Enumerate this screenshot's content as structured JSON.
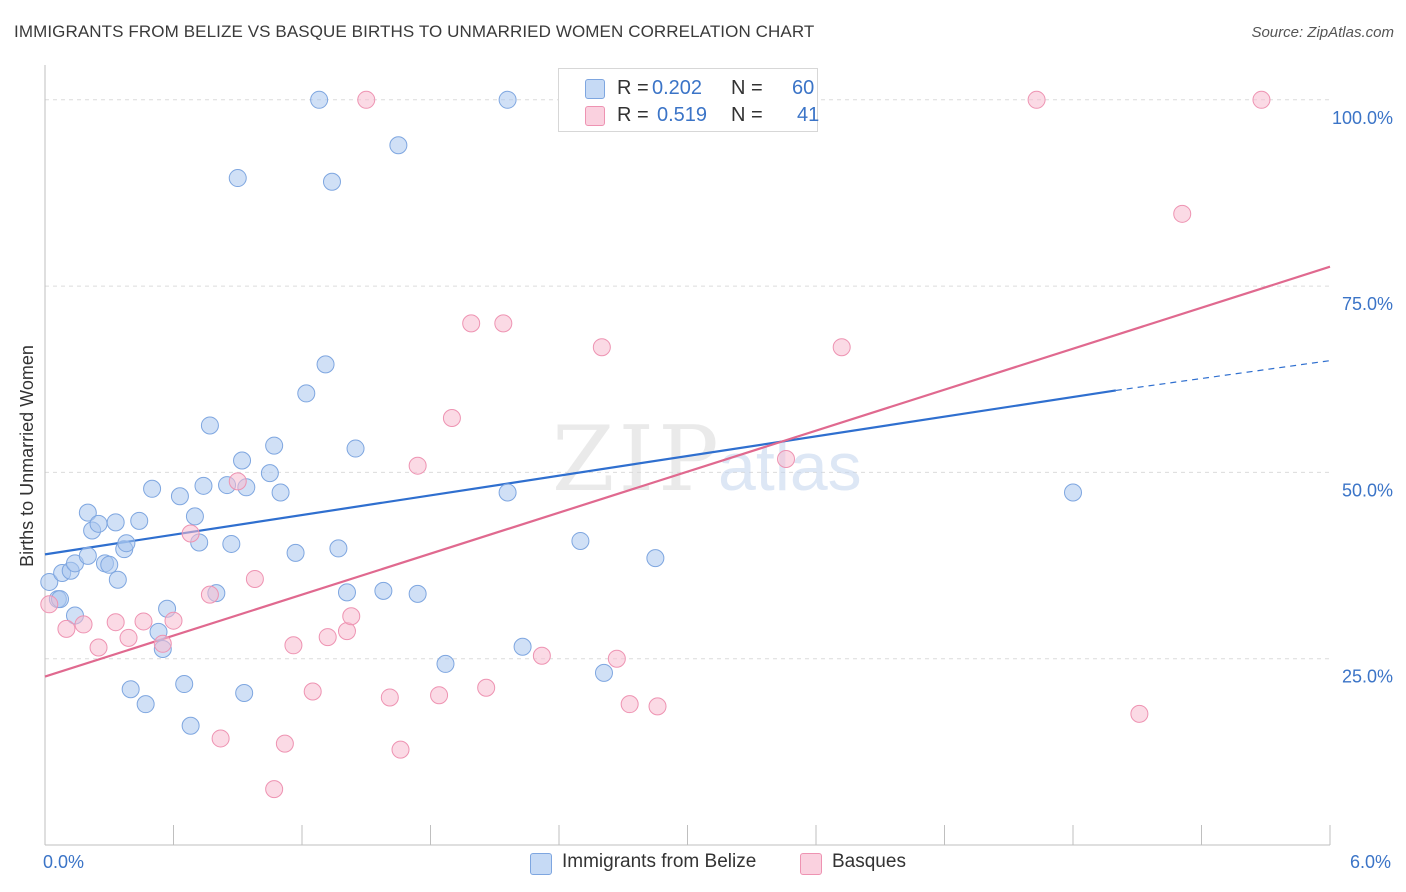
{
  "header": {
    "title": "IMMIGRANTS FROM BELIZE VS BASQUE BIRTHS TO UNMARRIED WOMEN CORRELATION CHART",
    "source": "Source: ZipAtlas.com"
  },
  "legend_top": {
    "rows": [
      {
        "r_key": "R =",
        "r_value": "0.202",
        "n_key": "N =",
        "n_value": "60"
      },
      {
        "r_key": "R =",
        "r_value": "0.519",
        "n_key": "N =",
        "n_value": "41"
      }
    ]
  },
  "legend_bottom": {
    "items": [
      "Immigrants from Belize",
      "Basques"
    ]
  },
  "watermark": {
    "zip": "ZIP",
    "atlas": "atlas"
  },
  "colors": {
    "blue_fill": "#a9c6ef",
    "blue_stroke": "#7ea6e0",
    "blue_line": "#2f6fcf",
    "pink_fill": "#f7bcd0",
    "pink_stroke": "#ee93b2",
    "pink_line": "#e0698f",
    "tick_label": "#3b74c7",
    "grid": "#dcdcdc"
  },
  "chart_data": {
    "type": "scatter",
    "title": "IMMIGRANTS FROM BELIZE VS BASQUE BIRTHS TO UNMARRIED WOMEN CORRELATION CHART",
    "xlabel": "",
    "ylabel": "Births to Unmarried Women",
    "xlim": [
      0,
      6
    ],
    "ylim": [
      0,
      104
    ],
    "x_tick_labels": [
      "0.0%",
      "6.0%"
    ],
    "y_ticks": [
      25,
      50,
      75,
      100
    ],
    "y_tick_labels": [
      "25.0%",
      "50.0%",
      "75.0%",
      "100.0%"
    ],
    "grid": true,
    "legend_position": "top-center",
    "series": [
      {
        "name": "Immigrants from Belize",
        "color": "#a9c6ef",
        "r": 0.202,
        "n": 60,
        "trend": {
          "x": [
            0.0,
            5.0
          ],
          "y": [
            39.0,
            61.0
          ],
          "dashed_extension": {
            "x": [
              5.0,
              6.0
            ],
            "y": [
              61.0,
              65.0
            ]
          }
        },
        "points": [
          [
            0.02,
            35.3
          ],
          [
            0.06,
            33.0
          ],
          [
            0.08,
            36.5
          ],
          [
            0.12,
            36.8
          ],
          [
            0.14,
            30.8
          ],
          [
            0.14,
            37.8
          ],
          [
            0.2,
            38.8
          ],
          [
            0.2,
            44.6
          ],
          [
            0.22,
            42.2
          ],
          [
            0.25,
            43.1
          ],
          [
            0.28,
            37.8
          ],
          [
            0.3,
            37.6
          ],
          [
            0.33,
            43.3
          ],
          [
            0.34,
            35.6
          ],
          [
            0.37,
            39.7
          ],
          [
            0.38,
            40.5
          ],
          [
            0.4,
            20.9
          ],
          [
            0.44,
            43.5
          ],
          [
            0.47,
            18.9
          ],
          [
            0.5,
            47.8
          ],
          [
            0.53,
            28.6
          ],
          [
            0.55,
            26.3
          ],
          [
            0.57,
            31.7
          ],
          [
            0.63,
            46.8
          ],
          [
            0.65,
            21.6
          ],
          [
            0.68,
            16.0
          ],
          [
            0.7,
            44.1
          ],
          [
            0.72,
            40.6
          ],
          [
            0.74,
            48.2
          ],
          [
            0.77,
            56.3
          ],
          [
            0.8,
            33.8
          ],
          [
            0.85,
            48.3
          ],
          [
            0.87,
            40.4
          ],
          [
            0.9,
            89.5
          ],
          [
            0.92,
            51.6
          ],
          [
            0.94,
            48.0
          ],
          [
            0.93,
            20.4
          ],
          [
            1.05,
            49.9
          ],
          [
            1.07,
            53.6
          ],
          [
            1.1,
            47.3
          ],
          [
            1.17,
            39.2
          ],
          [
            1.22,
            60.6
          ],
          [
            1.28,
            100.0
          ],
          [
            1.31,
            64.5
          ],
          [
            1.34,
            89.0
          ],
          [
            1.37,
            39.8
          ],
          [
            1.41,
            33.9
          ],
          [
            1.45,
            53.2
          ],
          [
            1.58,
            34.1
          ],
          [
            1.65,
            93.9
          ],
          [
            1.74,
            33.7
          ],
          [
            1.87,
            24.3
          ],
          [
            2.16,
            47.3
          ],
          [
            2.16,
            100.0
          ],
          [
            2.23,
            26.6
          ],
          [
            2.5,
            40.8
          ],
          [
            2.61,
            23.1
          ],
          [
            2.85,
            38.5
          ],
          [
            4.8,
            47.3
          ],
          [
            0.07,
            33.0
          ]
        ]
      },
      {
        "name": "Basques",
        "color": "#f7bcd0",
        "r": 0.519,
        "n": 41,
        "trend": {
          "x": [
            0.0,
            6.0
          ],
          "y": [
            22.6,
            77.6
          ]
        },
        "points": [
          [
            0.02,
            32.3
          ],
          [
            0.1,
            29.0
          ],
          [
            0.18,
            29.6
          ],
          [
            0.25,
            26.5
          ],
          [
            0.33,
            29.9
          ],
          [
            0.39,
            27.8
          ],
          [
            0.46,
            30.0
          ],
          [
            0.55,
            27.0
          ],
          [
            0.6,
            30.1
          ],
          [
            0.68,
            41.8
          ],
          [
            0.77,
            33.6
          ],
          [
            0.82,
            14.3
          ],
          [
            0.9,
            48.8
          ],
          [
            0.98,
            35.7
          ],
          [
            1.07,
            7.5
          ],
          [
            1.12,
            13.6
          ],
          [
            1.16,
            26.8
          ],
          [
            1.25,
            20.6
          ],
          [
            1.32,
            27.9
          ],
          [
            1.41,
            28.7
          ],
          [
            1.43,
            30.7
          ],
          [
            1.5,
            100.0
          ],
          [
            1.61,
            19.8
          ],
          [
            1.66,
            12.8
          ],
          [
            1.74,
            50.9
          ],
          [
            1.84,
            20.1
          ],
          [
            1.9,
            57.3
          ],
          [
            1.99,
            70.0
          ],
          [
            2.06,
            21.1
          ],
          [
            2.14,
            70.0
          ],
          [
            2.32,
            25.4
          ],
          [
            2.6,
            66.8
          ],
          [
            2.67,
            25.0
          ],
          [
            2.73,
            18.9
          ],
          [
            2.86,
            18.6
          ],
          [
            3.46,
            51.8
          ],
          [
            3.72,
            66.8
          ],
          [
            4.63,
            100.0
          ],
          [
            5.11,
            17.6
          ],
          [
            5.31,
            84.7
          ],
          [
            5.68,
            100.0
          ]
        ]
      }
    ]
  }
}
